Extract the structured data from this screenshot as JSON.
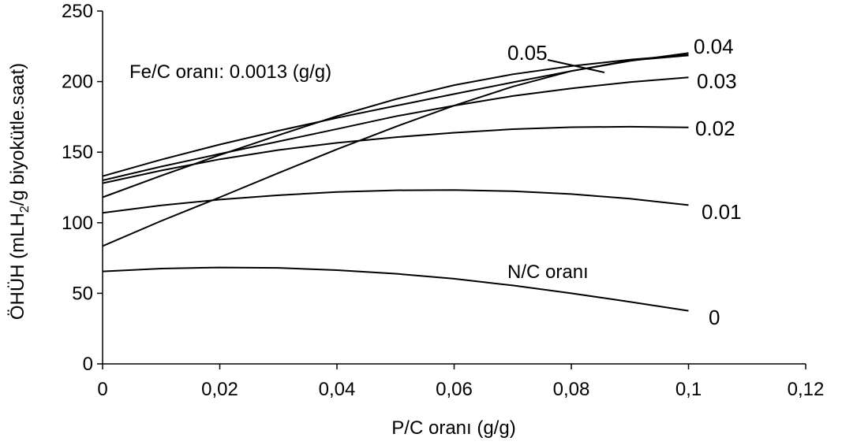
{
  "chart_data": {
    "type": "line",
    "xlabel": "P/C oranı (g/g)",
    "ylabel_parts": {
      "before": "ÖHÜH (mLH",
      "sub": "2",
      "after": "/g biyokütle.saat)"
    },
    "xlim": [
      0,
      0.12
    ],
    "ylim": [
      0,
      250
    ],
    "x_ticks": [
      0,
      0.02,
      0.04,
      0.06,
      0.08,
      0.1,
      0.12
    ],
    "x_tick_labels": [
      "0",
      "0,02",
      "0,04",
      "0,06",
      "0,08",
      "0,1",
      "0,12"
    ],
    "y_ticks": [
      0,
      50,
      100,
      150,
      200,
      250
    ],
    "y_tick_labels": [
      "0",
      "50",
      "100",
      "150",
      "200",
      "250"
    ],
    "grid": false,
    "legend": "none",
    "annotations": {
      "fe_c": "Fe/C oranı: 0.0013 (g/g)",
      "n_c": "N/C oranı"
    },
    "series": [
      {
        "label": "0",
        "x": [
          0,
          0.01,
          0.02,
          0.03,
          0.04,
          0.05,
          0.06,
          0.07,
          0.08,
          0.09,
          0.1
        ],
        "y": [
          65.5,
          67.5,
          68.3,
          68,
          66.4,
          63.9,
          60.3,
          55.6,
          50,
          44,
          37.6
        ]
      },
      {
        "label": "0.01",
        "x": [
          0,
          0.01,
          0.02,
          0.03,
          0.04,
          0.05,
          0.06,
          0.07,
          0.08,
          0.09,
          0.1
        ],
        "y": [
          107,
          112.3,
          116.4,
          119.5,
          121.8,
          123,
          123.2,
          122.3,
          120.3,
          117,
          112.5
        ]
      },
      {
        "label": "0.02",
        "x": [
          0,
          0.01,
          0.02,
          0.03,
          0.04,
          0.05,
          0.06,
          0.07,
          0.08,
          0.09,
          0.1
        ],
        "y": [
          128,
          137,
          145,
          151.5,
          156.6,
          160.6,
          163.8,
          166.3,
          167.7,
          168,
          167.5
        ]
      },
      {
        "label": "0.03",
        "x": [
          0,
          0.01,
          0.02,
          0.03,
          0.04,
          0.05,
          0.06,
          0.07,
          0.08,
          0.09,
          0.1
        ],
        "y": [
          130,
          139.8,
          148.8,
          157.6,
          166.4,
          175.4,
          183,
          189.8,
          195.2,
          199.6,
          203
        ]
      },
      {
        "label": "0.04",
        "x": [
          0,
          0.01,
          0.02,
          0.03,
          0.04,
          0.05,
          0.06,
          0.07,
          0.08,
          0.09,
          0.1
        ],
        "y": [
          133,
          144.7,
          155.4,
          165.2,
          174.3,
          182.8,
          191.2,
          199.5,
          207.5,
          214.6,
          220.2
        ]
      },
      {
        "label": "0.05",
        "x": [
          0,
          0.01,
          0.02,
          0.03,
          0.04,
          0.05,
          0.06,
          0.07,
          0.08,
          0.09,
          0.1
        ],
        "y": [
          118,
          133.3,
          148,
          162,
          175.5,
          187.5,
          197.5,
          205.2,
          211,
          215.5,
          219
        ]
      },
      {
        "label": "",
        "x": [
          0,
          0.01,
          0.02,
          0.03,
          0.04,
          0.05,
          0.06,
          0.07,
          0.08,
          0.09,
          0.1
        ],
        "y": [
          83.5,
          101.3,
          118,
          135.2,
          152,
          168,
          183,
          196.5,
          207.5,
          215,
          218.5
        ]
      }
    ]
  }
}
